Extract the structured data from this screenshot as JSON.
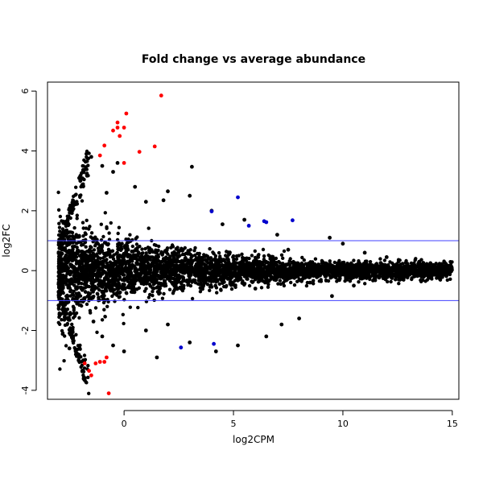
{
  "chart_data": {
    "type": "scatter",
    "title": "Fold change vs average abundance",
    "xlabel": "log2CPM",
    "ylabel": "log2FC",
    "xlim": [
      -3.5,
      15.3
    ],
    "ylim": [
      -4.3,
      6.3
    ],
    "xticks": [
      0,
      5,
      10,
      15
    ],
    "yticks": [
      -4,
      -2,
      0,
      2,
      4,
      6
    ],
    "grid": false,
    "legend": "none",
    "threshold_lines": [
      {
        "y": 1,
        "color": "#4040ff"
      },
      {
        "y": -1,
        "color": "#4040ff"
      }
    ],
    "series": [
      {
        "color": "#000000",
        "points": [
          [
            3.1,
            3.47
          ],
          [
            2.0,
            2.65
          ],
          [
            1.8,
            2.35
          ],
          [
            3.0,
            2.5
          ],
          [
            4.0,
            2.0
          ],
          [
            5.5,
            1.7
          ],
          [
            4.5,
            1.55
          ],
          [
            7.0,
            1.2
          ],
          [
            9.4,
            1.1
          ],
          [
            10.0,
            0.9
          ],
          [
            12.0,
            0.45
          ],
          [
            13.5,
            0.3
          ],
          [
            14.0,
            0.25
          ],
          [
            14.5,
            0.22
          ],
          [
            12.5,
            0.1
          ],
          [
            11.5,
            -0.2
          ],
          [
            10.5,
            -0.5
          ],
          [
            9.5,
            -0.85
          ],
          [
            8.0,
            -1.6
          ],
          [
            7.2,
            -1.8
          ],
          [
            6.5,
            -2.2
          ],
          [
            5.2,
            -2.5
          ],
          [
            4.2,
            -2.7
          ],
          [
            3.0,
            -2.4
          ],
          [
            1.5,
            -2.9
          ],
          [
            0.0,
            -2.7
          ],
          [
            -0.5,
            -2.5
          ],
          [
            -1.0,
            -2.2
          ],
          [
            1.0,
            -2.0
          ],
          [
            2.0,
            -1.8
          ],
          [
            -2.0,
            3.0
          ],
          [
            -1.5,
            3.8
          ],
          [
            -1.0,
            3.5
          ],
          [
            -0.3,
            3.6
          ],
          [
            0.5,
            2.8
          ],
          [
            1.0,
            2.3
          ],
          [
            -2.5,
            -2.6
          ],
          [
            -2.2,
            -2.8
          ],
          [
            -0.8,
            2.6
          ],
          [
            -0.5,
            3.3
          ],
          [
            -2.8,
            0.9
          ],
          [
            -2.9,
            -1.1
          ],
          [
            -1.4,
            -1.7
          ],
          [
            6.0,
            -0.6
          ],
          [
            7.5,
            0.7
          ],
          [
            8.5,
            -0.4
          ],
          [
            11.0,
            0.6
          ],
          [
            12.8,
            -0.15
          ]
        ]
      },
      {
        "color": "#ff0000",
        "points": [
          [
            1.7,
            5.85
          ],
          [
            0.1,
            5.25
          ],
          [
            -0.3,
            4.95
          ],
          [
            -0.3,
            4.78
          ],
          [
            -0.5,
            4.68
          ],
          [
            0.0,
            4.78
          ],
          [
            -0.2,
            4.5
          ],
          [
            1.4,
            4.15
          ],
          [
            0.7,
            3.97
          ],
          [
            -0.9,
            4.18
          ],
          [
            -1.1,
            3.85
          ],
          [
            0.0,
            3.6
          ],
          [
            -1.8,
            -3.1
          ],
          [
            -1.6,
            -3.35
          ],
          [
            -1.5,
            -3.5
          ],
          [
            -1.3,
            -3.1
          ],
          [
            -0.9,
            -3.05
          ],
          [
            -1.1,
            -3.05
          ],
          [
            -0.8,
            -2.9
          ],
          [
            -0.7,
            -4.1
          ]
        ]
      },
      {
        "color": "#0000cd",
        "points": [
          [
            5.2,
            2.45
          ],
          [
            4.0,
            1.98
          ],
          [
            6.4,
            1.65
          ],
          [
            6.5,
            1.62
          ],
          [
            7.7,
            1.68
          ],
          [
            5.7,
            1.5
          ],
          [
            4.1,
            -2.45
          ],
          [
            2.6,
            -2.57
          ]
        ]
      }
    ],
    "dense_cloud": {
      "color": "#000000",
      "x_range": [
        -3.0,
        15.0
      ],
      "center_y": 0
    }
  }
}
